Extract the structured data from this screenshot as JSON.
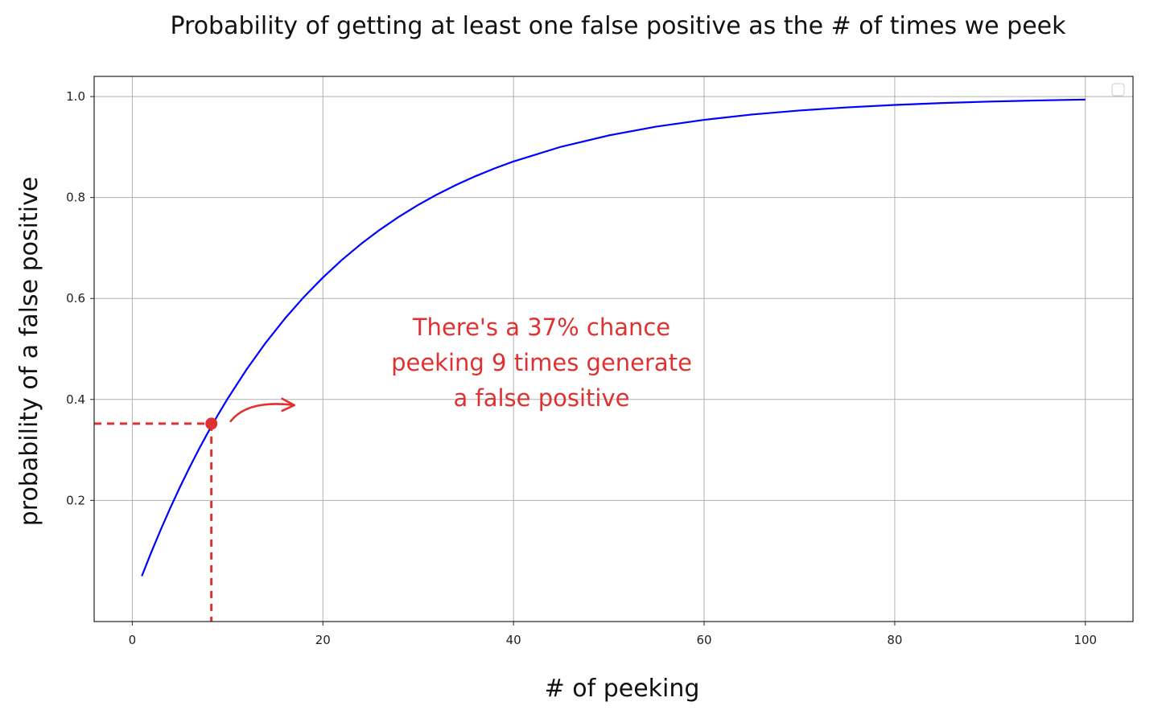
{
  "chart_data": {
    "type": "line",
    "title": "Probability of getting at least one false positive as the # of times we peek",
    "xlabel": "# of peeking",
    "ylabel": "probability of a false positive",
    "xlim": [
      -4,
      105
    ],
    "ylim": [
      -0.04,
      1.04
    ],
    "xticks": [
      0,
      20,
      40,
      60,
      80,
      100
    ],
    "xtick_labels": [
      "0",
      "20",
      "40",
      "60",
      "80",
      "100"
    ],
    "yticks": [
      0.2,
      0.4,
      0.6,
      0.8,
      1.0
    ],
    "ytick_labels": [
      "0.2",
      "0.4",
      "0.6",
      "0.8",
      "1.0"
    ],
    "grid": true,
    "legend": "top-right (empty)",
    "series": [
      {
        "color": "#0000ff",
        "x": [
          1,
          2,
          3,
          4,
          5,
          6,
          7,
          8,
          9,
          10,
          12,
          14,
          16,
          18,
          20,
          22,
          24,
          26,
          28,
          30,
          32,
          34,
          36,
          38,
          40,
          45,
          50,
          55,
          60,
          65,
          70,
          75,
          80,
          85,
          90,
          95,
          100
        ],
        "values": [
          0.05,
          0.0975,
          0.1426,
          0.1855,
          0.2262,
          0.2649,
          0.3017,
          0.3366,
          0.3698,
          0.4013,
          0.4596,
          0.5123,
          0.5599,
          0.6028,
          0.6415,
          0.6765,
          0.708,
          0.7365,
          0.7622,
          0.7854,
          0.8063,
          0.8252,
          0.8422,
          0.8576,
          0.8715,
          0.9006,
          0.9231,
          0.9405,
          0.9539,
          0.9644,
          0.9724,
          0.9786,
          0.9835,
          0.9872,
          0.9901,
          0.9923,
          0.9941
        ]
      }
    ],
    "highlight_point": {
      "x": 8.3,
      "y": 0.352,
      "color": "#e03131"
    },
    "annotation": {
      "lines": [
        "There's a 37% chance",
        "peeking 9 times generate",
        "a false positive"
      ],
      "color": "#e03131"
    }
  }
}
